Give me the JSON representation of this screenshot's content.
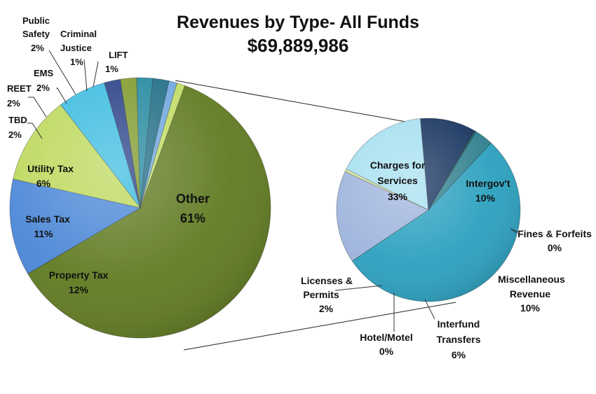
{
  "chart_data": {
    "type": "pie",
    "title": "Revenues by Type- All Funds",
    "subtitle": "$69,889,986",
    "main_pie": {
      "slices": [
        {
          "label": "Other",
          "percent": "61%",
          "value": 61,
          "color": "#5f7a20"
        },
        {
          "label": "Property Tax",
          "percent": "12%",
          "value": 12,
          "color": "#4a86d6"
        },
        {
          "label": "Sales Tax",
          "percent": "11%",
          "value": 11,
          "color": "#bcd85a"
        },
        {
          "label": "Utility Tax",
          "percent": "6%",
          "value": 6,
          "color": "#3bbbe0"
        },
        {
          "label": "TBD",
          "percent": "2%",
          "value": 2,
          "color": "#283f86"
        },
        {
          "label": "REET",
          "percent": "2%",
          "value": 2,
          "color": "#7f9a2c"
        },
        {
          "label": "EMS",
          "percent": "2%",
          "value": 2,
          "color": "#23889e"
        },
        {
          "label": "Public Safety",
          "percent": "2%",
          "value": 2,
          "color": "#1f6d86"
        },
        {
          "label": "Criminal Justice",
          "percent": "1%",
          "value": 1,
          "color": "#6fa7de"
        },
        {
          "label": "LIFT",
          "percent": "1%",
          "value": 1,
          "color": "#c2dc63"
        }
      ]
    },
    "breakout_pie": {
      "parent": "Other",
      "slices": [
        {
          "label": "Charges for Services",
          "percent": "33%",
          "value": 33,
          "color": "#2aa0bf"
        },
        {
          "label": "Intergov't",
          "percent": "10%",
          "value": 10,
          "color": "#9eb4dd"
        },
        {
          "label": "Fines & Forfeits",
          "percent": "0%",
          "value": 0.3,
          "color": "#d9e6a5"
        },
        {
          "label": "Miscellaneous Revenue",
          "percent": "10%",
          "value": 10,
          "color": "#a6e0f0"
        },
        {
          "label": "Interfund Transfers",
          "percent": "6%",
          "value": 6,
          "color": "#17335f"
        },
        {
          "label": "Hotel/Motel",
          "percent": "0%",
          "value": 0.2,
          "color": "#1c5a63"
        },
        {
          "label": "Licenses & Permits",
          "percent": "2%",
          "value": 2,
          "color": "#2f7f8e"
        }
      ]
    }
  },
  "labels": {
    "other_name": "Other",
    "other_pct": "61%",
    "property_name": "Property Tax",
    "property_pct": "12%",
    "sales_name": "Sales Tax",
    "sales_pct": "11%",
    "utility_name": "Utility Tax",
    "utility_pct": "6%",
    "tbd_name": "TBD",
    "tbd_pct": "2%",
    "reet_name": "REET",
    "reet_pct": "2%",
    "ems_name": "EMS",
    "ems_pct": "2%",
    "ps_name1": "Public",
    "ps_name2": "Safety",
    "ps_pct": "2%",
    "cj_name1": "Criminal",
    "cj_name2": "Justice",
    "cj_pct": "1%",
    "lift_name": "LIFT",
    "lift_pct": "1%",
    "cfs_name1": "Charges for",
    "cfs_name2": "Services",
    "cfs_pct": "33%",
    "ig_name": "Intergov't",
    "ig_pct": "10%",
    "ff_name": "Fines & Forfeits",
    "ff_pct": "0%",
    "misc_name1": "Miscellaneous",
    "misc_name2": "Revenue",
    "misc_pct": "10%",
    "it_name1": "Interfund",
    "it_name2": "Transfers",
    "it_pct": "6%",
    "hm_name": "Hotel/Motel",
    "hm_pct": "0%",
    "lp_name1": "Licenses &",
    "lp_name2": "Permits",
    "lp_pct": "2%"
  }
}
